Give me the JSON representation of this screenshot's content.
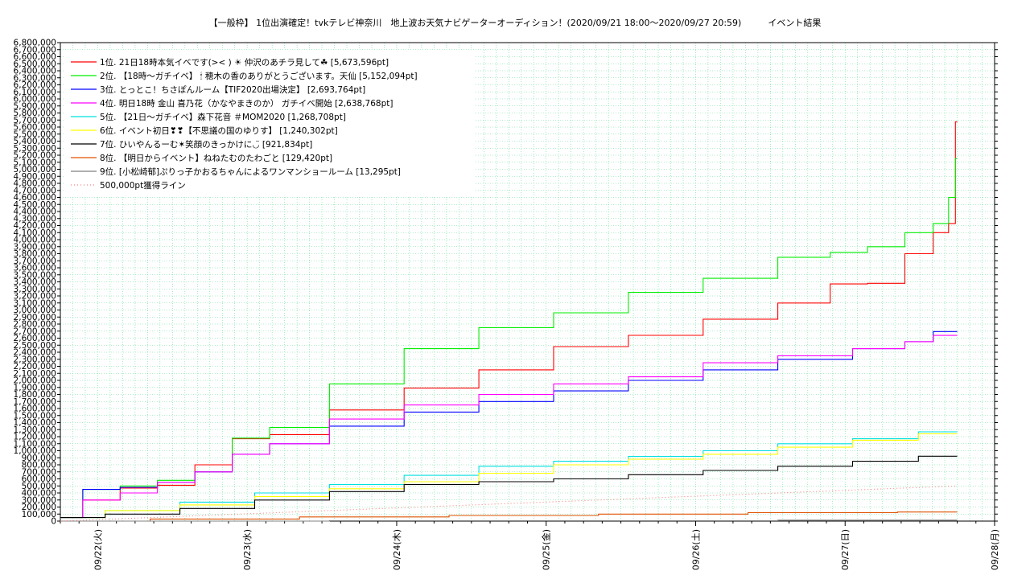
{
  "chart_data": {
    "type": "line",
    "title": "【一般枠】 1位出演確定！tvkテレビ神奈川　地上波お天気ナビゲーターオーディション！(2020/09/21 18:00～2020/09/27 20:59)　　　イベント結果",
    "xlabel": "",
    "ylabel": "",
    "x_ticks": [
      "09/22(火)",
      "09/23(水)",
      "09/24(木)",
      "09/25(金)",
      "09/26(土)",
      "09/27(日)",
      "09/28(月)"
    ],
    "x_range": [
      "2020/09/21 18:00",
      "2020/09/28 00:00"
    ],
    "ylim": [
      0,
      6800000
    ],
    "y_tick_step": 100000,
    "grid": true,
    "legend_position": "top-left",
    "series": [
      {
        "name": "1位. 21日18時本気イベです(>< ) ☀ 仲沢のあチラ見して☘ [5,673,596pt]",
        "color": "#ff0000",
        "style": "solid",
        "x": [
          0,
          0.25,
          0.5,
          0.75,
          1,
          1.25,
          1.5,
          2,
          2.5,
          3,
          3.5,
          4,
          4.5,
          5,
          5.25,
          5.5,
          5.75,
          5.9,
          5.97,
          6
        ],
        "y": [
          50000,
          300000,
          470000,
          510000,
          800000,
          1170000,
          1230000,
          1580000,
          1890000,
          2150000,
          2480000,
          2640000,
          2870000,
          3100000,
          3370000,
          3380000,
          3800000,
          4100000,
          4230000,
          5673596
        ]
      },
      {
        "name": "2位. 【18時～ガチイベ】 🕯 穂木の香のありがとうございます。天仙 [5,152,094pt]",
        "color": "#00ee00",
        "style": "solid",
        "x": [
          0,
          0.25,
          0.5,
          0.75,
          1,
          1.25,
          1.5,
          2,
          2.5,
          3,
          3.5,
          4,
          4.5,
          5,
          5.25,
          5.5,
          5.75,
          5.9,
          5.97,
          6
        ],
        "y": [
          50000,
          450000,
          500000,
          580000,
          700000,
          1180000,
          1330000,
          1950000,
          2450000,
          2750000,
          2960000,
          3250000,
          3450000,
          3750000,
          3820000,
          3900000,
          4100000,
          4230000,
          4600000,
          5152094
        ]
      },
      {
        "name": "3位. とっとこ！ちさぽんルーム【TIF2020出場決定】 [2,693,764pt]",
        "color": "#0000ff",
        "style": "solid",
        "x": [
          0,
          0.25,
          0.5,
          0.75,
          1,
          1.25,
          1.5,
          2,
          2.5,
          3,
          3.5,
          4,
          4.5,
          5,
          5.5,
          5.75,
          5.9,
          6
        ],
        "y": [
          50000,
          450000,
          480000,
          550000,
          700000,
          950000,
          1100000,
          1350000,
          1550000,
          1700000,
          1850000,
          2000000,
          2150000,
          2300000,
          2450000,
          2550000,
          2693764,
          2693764
        ]
      },
      {
        "name": "4位. 明日18時 金山 喜乃花（かなやまきのか） ガチイベ開始 [2,638,768pt]",
        "color": "#ff00ff",
        "style": "solid",
        "x": [
          0,
          0.25,
          0.5,
          0.75,
          1,
          1.25,
          1.5,
          2,
          2.5,
          3,
          3.5,
          4,
          4.5,
          5,
          5.5,
          5.75,
          5.9,
          6
        ],
        "y": [
          50000,
          300000,
          400000,
          550000,
          700000,
          950000,
          1100000,
          1450000,
          1650000,
          1800000,
          1950000,
          2050000,
          2250000,
          2350000,
          2450000,
          2550000,
          2638768,
          2638768
        ]
      },
      {
        "name": "5位. 【21日～ガチイベ】森下花音 ＃MOM2020 [1,268,708pt]",
        "color": "#00e0e0",
        "style": "solid",
        "x": [
          0,
          0.5,
          1,
          1.5,
          2,
          2.5,
          3,
          3.5,
          4,
          4.5,
          5,
          5.5,
          5.9,
          6
        ],
        "y": [
          50000,
          150000,
          270000,
          400000,
          520000,
          650000,
          780000,
          850000,
          920000,
          1000000,
          1100000,
          1170000,
          1268708,
          1268708
        ]
      },
      {
        "name": "6位. イベント初日❣❣【不思議の国のゆりす】 [1,240,302pt]",
        "color": "#ffff00",
        "style": "solid",
        "x": [
          0,
          0.5,
          1,
          1.5,
          2,
          2.5,
          3,
          3.5,
          4,
          4.5,
          5,
          5.5,
          5.9,
          6
        ],
        "y": [
          50000,
          150000,
          230000,
          350000,
          460000,
          560000,
          680000,
          800000,
          880000,
          950000,
          1050000,
          1150000,
          1240302,
          1240302
        ]
      },
      {
        "name": "7位. ひいやんるーむ✶笑顔のきっかけに◡̈ [921,834pt]",
        "color": "#000000",
        "style": "solid",
        "x": [
          0,
          0.5,
          1,
          1.5,
          2,
          2.5,
          3,
          3.5,
          4,
          4.5,
          5,
          5.5,
          5.9,
          6
        ],
        "y": [
          50000,
          100000,
          180000,
          300000,
          420000,
          520000,
          560000,
          600000,
          660000,
          720000,
          780000,
          850000,
          921834,
          921834
        ]
      },
      {
        "name": "8位. 【明日からイベント】ねねたむのたわごと [129,420pt]",
        "color": "#e05000",
        "style": "solid",
        "x": [
          0,
          1,
          2,
          3,
          4,
          5,
          6
        ],
        "y": [
          0,
          30000,
          60000,
          80000,
          100000,
          120000,
          129420
        ]
      },
      {
        "name": "9位. [小松崎郁]ぷりっ子かおるちゃんによるワンマンショールーム [13,295pt]",
        "color": "#808080",
        "style": "solid",
        "x": [
          0,
          3,
          6
        ],
        "y": [
          0,
          6000,
          13295
        ]
      },
      {
        "name": "500,000pt獲得ライン",
        "color": "#ff8080",
        "style": "dotted",
        "x": [
          0,
          6
        ],
        "y": [
          0,
          500000
        ]
      }
    ]
  }
}
